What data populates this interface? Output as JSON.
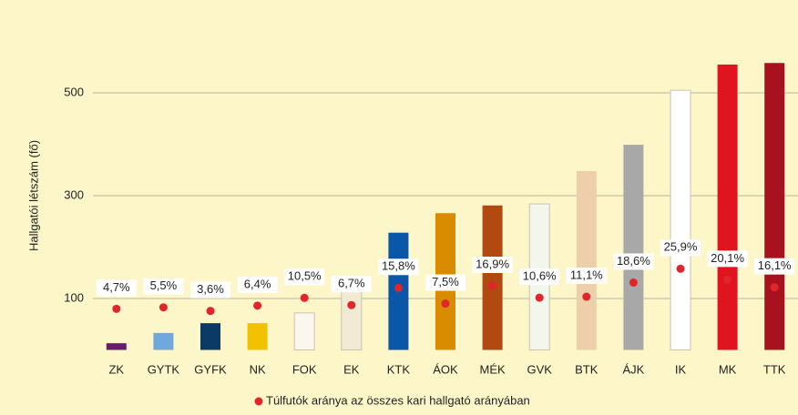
{
  "chart_data": {
    "type": "bar",
    "y_label": "Hallgatói létszám (fő)",
    "categories": [
      "ZK",
      "GYTK",
      "GYFK",
      "NK",
      "FOK",
      "EK",
      "KTK",
      "ÁOK",
      "MÉK",
      "GVK",
      "BTK",
      "ÁJK",
      "IK",
      "MK",
      "TTK"
    ],
    "values": [
      13,
      33,
      52,
      52,
      72,
      116,
      228,
      266,
      281,
      284,
      348,
      399,
      505,
      555,
      558
    ],
    "colors": [
      "#6a1b6e",
      "#6fa8dc",
      "#0b3a66",
      "#f2c200",
      "#fbf7ef",
      "#f3ead3",
      "#0a56a8",
      "#d98c00",
      "#b04a10",
      "#f3f6ea",
      "#edcfac",
      "#a8a8a8",
      "#ffffff",
      "#e0141e",
      "#a8121e"
    ],
    "outlined": [
      "FOK",
      "EK",
      "GVK",
      "IK"
    ],
    "ylim": [
      0,
      600
    ],
    "yticks": [
      100,
      300,
      500
    ],
    "grid": true,
    "series": [
      {
        "name": "Túlfutók aránya az összes kari hallgató arányában",
        "color": "#e0262b",
        "axis": "y2",
        "values": [
          4.7,
          5.5,
          3.6,
          6.4,
          10.5,
          6.7,
          15.8,
          7.5,
          16.9,
          10.6,
          11.1,
          18.6,
          25.9,
          20.1,
          16.1
        ],
        "value_labels": [
          "4,7%",
          "5,5%",
          "3,6%",
          "6,4%",
          "10,5%",
          "6,7%",
          "15,8%",
          "7,5%",
          "16,9%",
          "10,6%",
          "11,1%",
          "18,6%",
          "25,9%",
          "20,1%",
          "16,1%"
        ]
      }
    ],
    "y2lim": [
      -17,
      146
    ]
  }
}
